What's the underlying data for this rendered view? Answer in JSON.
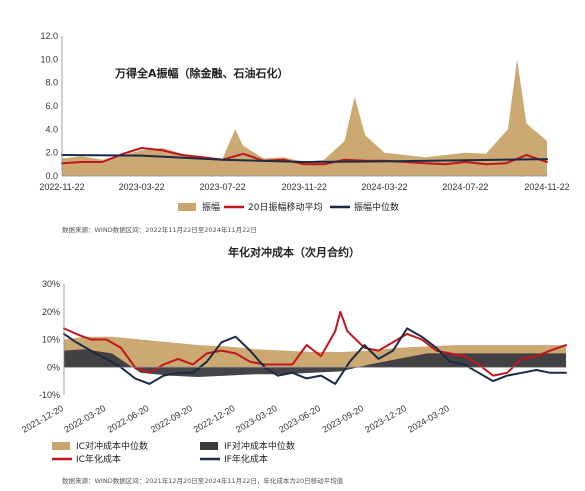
{
  "chart_data": [
    {
      "type": "area",
      "title": "万得全A振幅（除金融、石油石化）",
      "x_ticks": [
        "2022-11-22",
        "2023-03-22",
        "2023-07-22",
        "2023-11-22",
        "2024-03-22",
        "2024-07-22",
        "2024-11-22"
      ],
      "y_ticks": [
        "0.0",
        "2.0",
        "4.0",
        "6.0",
        "8.0",
        "10.0",
        "12.0"
      ],
      "ylim": [
        0,
        12
      ],
      "x_range": [
        "2022-11-22",
        "2024-11-22"
      ],
      "grid": false,
      "legend_position": "bottom",
      "series": [
        {
          "name": "振幅",
          "kind": "area",
          "color": "#C9A46B",
          "points": [
            [
              "2022-11-22",
              1.5
            ],
            [
              "2022-12-22",
              1.7
            ],
            [
              "2023-01-22",
              1.4
            ],
            [
              "2023-02-22",
              1.8
            ],
            [
              "2023-03-22",
              2.2
            ],
            [
              "2023-04-22",
              2.4
            ],
            [
              "2023-05-22",
              1.9
            ],
            [
              "2023-06-22",
              1.6
            ],
            [
              "2023-07-22",
              1.5
            ],
            [
              "2023-08-10",
              4.0
            ],
            [
              "2023-08-22",
              2.6
            ],
            [
              "2023-09-22",
              1.5
            ],
            [
              "2023-10-22",
              1.6
            ],
            [
              "2023-11-22",
              1.2
            ],
            [
              "2023-12-22",
              1.4
            ],
            [
              "2024-01-22",
              3.0
            ],
            [
              "2024-02-06",
              6.8
            ],
            [
              "2024-02-22",
              3.5
            ],
            [
              "2024-03-22",
              2.0
            ],
            [
              "2024-04-22",
              1.8
            ],
            [
              "2024-05-22",
              1.6
            ],
            [
              "2024-06-22",
              1.8
            ],
            [
              "2024-07-22",
              2.0
            ],
            [
              "2024-08-22",
              1.9
            ],
            [
              "2024-09-24",
              4.0
            ],
            [
              "2024-10-08",
              10.0
            ],
            [
              "2024-10-22",
              4.5
            ],
            [
              "2024-11-22",
              3.0
            ]
          ]
        },
        {
          "name": "20日振幅移动平均",
          "kind": "line",
          "color": "#C0161D",
          "points": [
            [
              "2022-11-22",
              1.1
            ],
            [
              "2022-12-22",
              1.2
            ],
            [
              "2023-01-22",
              1.2
            ],
            [
              "2023-02-22",
              1.9
            ],
            [
              "2023-03-22",
              2.4
            ],
            [
              "2023-04-22",
              2.2
            ],
            [
              "2023-05-22",
              1.8
            ],
            [
              "2023-06-22",
              1.6
            ],
            [
              "2023-07-22",
              1.4
            ],
            [
              "2023-08-22",
              1.9
            ],
            [
              "2023-09-22",
              1.3
            ],
            [
              "2023-10-22",
              1.4
            ],
            [
              "2023-11-22",
              1.0
            ],
            [
              "2023-12-22",
              1.0
            ],
            [
              "2024-01-22",
              1.4
            ],
            [
              "2024-02-22",
              1.3
            ],
            [
              "2024-03-22",
              1.3
            ],
            [
              "2024-04-22",
              1.2
            ],
            [
              "2024-05-22",
              1.1
            ],
            [
              "2024-06-22",
              1.0
            ],
            [
              "2024-07-22",
              1.2
            ],
            [
              "2024-08-22",
              1.0
            ],
            [
              "2024-09-22",
              1.1
            ],
            [
              "2024-10-22",
              1.8
            ],
            [
              "2024-11-22",
              1.2
            ]
          ]
        },
        {
          "name": "振幅中位数",
          "kind": "line",
          "color": "#1C2B45",
          "points": [
            [
              "2022-11-22",
              1.8
            ],
            [
              "2023-03-22",
              1.75
            ],
            [
              "2023-07-22",
              1.4
            ],
            [
              "2023-11-22",
              1.2
            ],
            [
              "2024-03-22",
              1.25
            ],
            [
              "2024-07-22",
              1.35
            ],
            [
              "2024-11-22",
              1.45
            ]
          ]
        }
      ]
    },
    {
      "type": "area",
      "title": "年化对冲成本（次月合约）",
      "x_ticks": [
        "2021-12-20",
        "2022-03-20",
        "2022-06-20",
        "2022-09-20",
        "2022-12-20",
        "2023-03-20",
        "2023-06-20",
        "2023-09-20",
        "2023-12-20",
        "2024-03-20"
      ],
      "y_ticks": [
        "-10%",
        "0%",
        "10%",
        "20%",
        "30%"
      ],
      "ylim": [
        -10,
        30
      ],
      "x_range": [
        "2021-12-20",
        "2024-11-22"
      ],
      "grid": false,
      "legend_position": "bottom",
      "series": [
        {
          "name": "IC对冲成本中位数",
          "kind": "area",
          "color": "#C9A46B",
          "points": [
            [
              "2021-12-20",
              10
            ],
            [
              "2022-02-01",
              11
            ],
            [
              "2022-04-01",
              11
            ],
            [
              "2022-06-01",
              10
            ],
            [
              "2022-08-01",
              9
            ],
            [
              "2022-10-01",
              8
            ],
            [
              "2022-12-01",
              7.5
            ],
            [
              "2023-02-01",
              6.5
            ],
            [
              "2023-04-01",
              6
            ],
            [
              "2023-06-01",
              5.5
            ],
            [
              "2023-08-01",
              5.5
            ],
            [
              "2023-10-01",
              6
            ],
            [
              "2023-12-01",
              7
            ],
            [
              "2024-02-01",
              7.5
            ],
            [
              "2024-04-01",
              8
            ],
            [
              "2024-06-01",
              8
            ],
            [
              "2024-08-01",
              8
            ],
            [
              "2024-11-22",
              8
            ]
          ]
        },
        {
          "name": "IF对冲成本中位数",
          "kind": "area",
          "color": "#3A3A3F",
          "points": [
            [
              "2021-12-20",
              6
            ],
            [
              "2022-02-01",
              6.5
            ],
            [
              "2022-04-01",
              5
            ],
            [
              "2022-06-01",
              -2
            ],
            [
              "2022-08-01",
              -3
            ],
            [
              "2022-10-01",
              -3.5
            ],
            [
              "2022-12-01",
              -3
            ],
            [
              "2023-02-01",
              -2.5
            ],
            [
              "2023-04-01",
              -2.5
            ],
            [
              "2023-06-01",
              -2
            ],
            [
              "2023-08-01",
              -1.5
            ],
            [
              "2023-10-01",
              1
            ],
            [
              "2023-12-01",
              3
            ],
            [
              "2024-02-01",
              5
            ],
            [
              "2024-04-01",
              5
            ],
            [
              "2024-06-01",
              5
            ],
            [
              "2024-08-01",
              5
            ],
            [
              "2024-11-22",
              5
            ]
          ]
        },
        {
          "name": "IC年化成本",
          "kind": "line",
          "color": "#C0161D",
          "points": [
            [
              "2021-12-20",
              14
            ],
            [
              "2022-01-15",
              12
            ],
            [
              "2022-02-15",
              10
            ],
            [
              "2022-03-20",
              10
            ],
            [
              "2022-04-20",
              7
            ],
            [
              "2022-05-20",
              0
            ],
            [
              "2022-06-20",
              -2
            ],
            [
              "2022-07-20",
              1
            ],
            [
              "2022-08-20",
              3
            ],
            [
              "2022-09-20",
              1
            ],
            [
              "2022-10-20",
              5
            ],
            [
              "2022-11-20",
              6
            ],
            [
              "2022-12-20",
              5
            ],
            [
              "2023-01-20",
              2
            ],
            [
              "2023-02-20",
              1
            ],
            [
              "2023-03-20",
              1
            ],
            [
              "2023-04-20",
              1
            ],
            [
              "2023-05-20",
              8
            ],
            [
              "2023-06-20",
              4
            ],
            [
              "2023-07-20",
              13
            ],
            [
              "2023-07-31",
              20
            ],
            [
              "2023-08-15",
              13
            ],
            [
              "2023-09-20",
              7
            ],
            [
              "2023-10-20",
              6
            ],
            [
              "2023-11-20",
              9
            ],
            [
              "2023-12-20",
              12
            ],
            [
              "2024-01-20",
              10
            ],
            [
              "2024-02-20",
              6
            ],
            [
              "2024-03-20",
              5
            ],
            [
              "2024-04-20",
              4
            ],
            [
              "2024-05-20",
              1
            ],
            [
              "2024-06-20",
              -3
            ],
            [
              "2024-07-20",
              -2
            ],
            [
              "2024-08-20",
              3
            ],
            [
              "2024-09-20",
              4
            ],
            [
              "2024-10-20",
              6
            ],
            [
              "2024-11-22",
              8
            ]
          ]
        },
        {
          "name": "IF年化成本",
          "kind": "line",
          "color": "#1C2B45",
          "points": [
            [
              "2021-12-20",
              12
            ],
            [
              "2022-01-15",
              9
            ],
            [
              "2022-02-15",
              6
            ],
            [
              "2022-03-20",
              3
            ],
            [
              "2022-04-20",
              0
            ],
            [
              "2022-05-20",
              -4
            ],
            [
              "2022-06-20",
              -6
            ],
            [
              "2022-07-20",
              -3
            ],
            [
              "2022-08-20",
              -2
            ],
            [
              "2022-09-20",
              -2
            ],
            [
              "2022-10-20",
              2
            ],
            [
              "2022-11-20",
              9
            ],
            [
              "2022-12-20",
              11
            ],
            [
              "2023-01-20",
              6
            ],
            [
              "2023-02-20",
              0
            ],
            [
              "2023-03-20",
              -3
            ],
            [
              "2023-04-20",
              -2
            ],
            [
              "2023-05-20",
              -4
            ],
            [
              "2023-06-20",
              -3
            ],
            [
              "2023-07-20",
              -6
            ],
            [
              "2023-08-20",
              2
            ],
            [
              "2023-09-20",
              8
            ],
            [
              "2023-10-20",
              3
            ],
            [
              "2023-11-20",
              6
            ],
            [
              "2023-12-20",
              14
            ],
            [
              "2024-01-20",
              11
            ],
            [
              "2024-02-20",
              7
            ],
            [
              "2024-03-20",
              2
            ],
            [
              "2024-04-20",
              1
            ],
            [
              "2024-05-20",
              -2
            ],
            [
              "2024-06-20",
              -5
            ],
            [
              "2024-07-20",
              -3
            ],
            [
              "2024-08-20",
              -2
            ],
            [
              "2024-09-20",
              -1
            ],
            [
              "2024-10-20",
              -2
            ],
            [
              "2024-11-22",
              -2
            ]
          ]
        }
      ]
    }
  ],
  "notes": {
    "chart1": "数据来源：WIND数据区间：2022年11月22日至2024年11月22日",
    "chart2": "数据来源：WIND数据区间：2021年12月20日至2024年11月22日，年化成本为20日移动平均值"
  }
}
